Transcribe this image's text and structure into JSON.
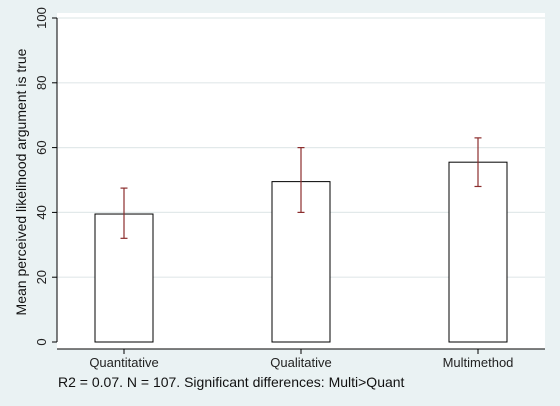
{
  "chart_data": {
    "type": "bar",
    "categories": [
      "Quantitative",
      "Qualitative",
      "Multimethod"
    ],
    "values": [
      39.5,
      49.5,
      55.5
    ],
    "error_bars": [
      {
        "low": 32,
        "high": 47.5
      },
      {
        "low": 40,
        "high": 60
      },
      {
        "low": 48,
        "high": 63
      }
    ],
    "ylabel": "Mean perceived likelihood argument is true",
    "xlabel": "",
    "ylim": [
      0,
      100
    ],
    "yticks": [
      0,
      20,
      40,
      60,
      80,
      100
    ],
    "grid": true,
    "note": "R2 = 0.07. N = 107. Significant differences: Multi>Quant",
    "colors": {
      "page_background": "#eaf2f3",
      "plot_background": "#ffffff",
      "bar_fill": "#ffffff",
      "bar_stroke": "#000000",
      "error_bar": "#8b2d2d",
      "grid": "#e2e9ea"
    }
  }
}
